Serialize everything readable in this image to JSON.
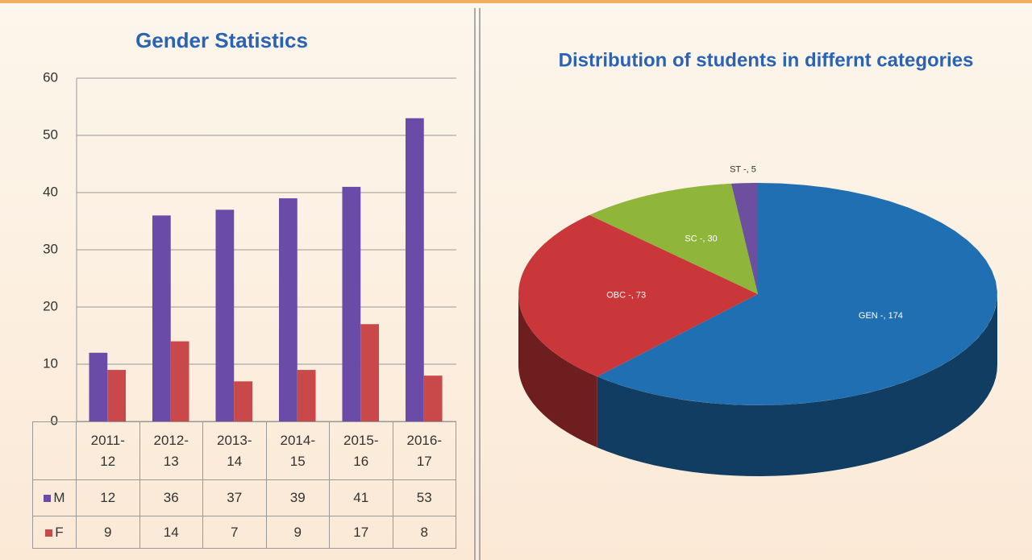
{
  "chart_data": [
    {
      "type": "bar",
      "title": "Gender Statistics",
      "categories": [
        "2011-12",
        "2012-13",
        "2013-14",
        "2014-15",
        "2015-16",
        "2016-17"
      ],
      "series": [
        {
          "name": "M",
          "color": "#6a4ca8",
          "values": [
            12,
            36,
            37,
            39,
            41,
            53
          ]
        },
        {
          "name": "F",
          "color": "#c9484a",
          "values": [
            9,
            14,
            7,
            9,
            17,
            8
          ]
        }
      ],
      "ylim": [
        0,
        60
      ],
      "yticks": [
        0,
        10,
        20,
        30,
        40,
        50,
        60
      ],
      "grid": true
    },
    {
      "type": "pie",
      "title": "Distribution of students in differnt categories",
      "values": [
        174,
        73,
        30,
        5
      ],
      "value_labels": [
        "GEN -, 174",
        "OBC -, 73",
        "SC -, 30",
        "ST -, 5"
      ],
      "colors": [
        "#1f6fb2",
        "#c9373a",
        "#8fb63a",
        "#6c4f9f"
      ]
    }
  ]
}
